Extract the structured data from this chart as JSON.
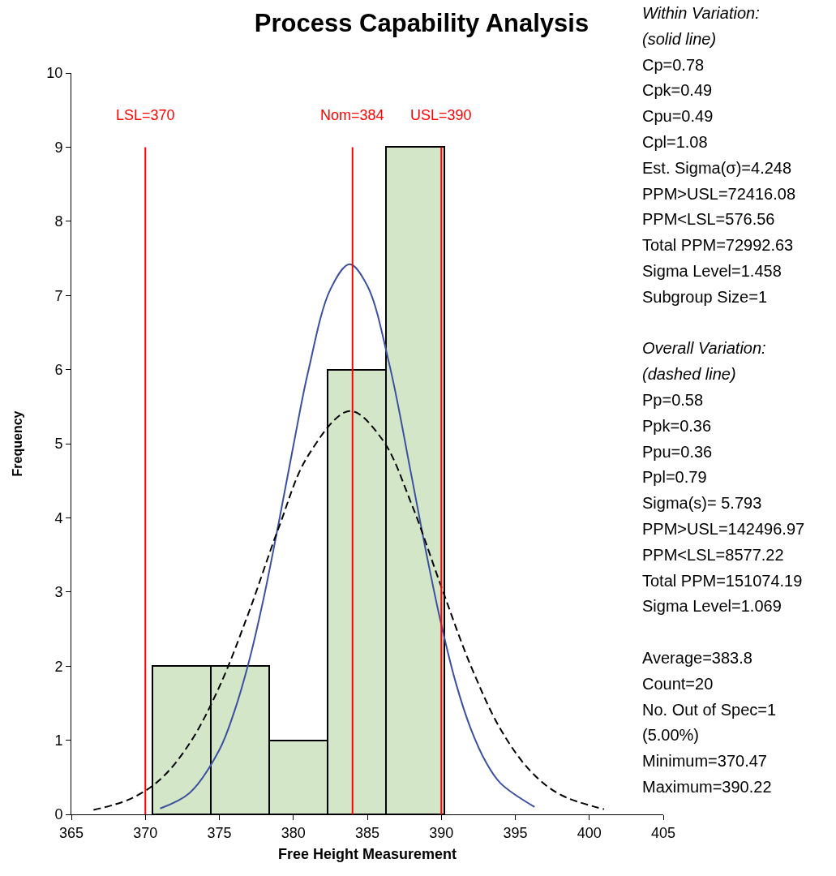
{
  "chart_data": {
    "type": "histogram",
    "title": "Process Capability Analysis",
    "xlabel": "Free Height Measurement",
    "ylabel": "Frequency",
    "bins": [
      370.47,
      374.42,
      378.37,
      382.32,
      386.27,
      390.22
    ],
    "values": [
      2,
      2,
      1,
      6,
      9
    ],
    "color": "#d3e6c8",
    "series": [
      {
        "type": "line",
        "color": "#3c50a0",
        "line_style": "solid",
        "x": [
          371,
          373,
          375,
          376,
          377,
          378,
          379,
          380,
          381,
          382.5,
          383.8,
          385,
          386.5,
          388,
          389,
          390,
          391,
          392,
          393,
          394,
          396.3
        ],
        "values": [
          0.08,
          0.29,
          0.87,
          1.38,
          2.06,
          2.92,
          3.92,
          4.97,
          5.97,
          7.08,
          7.42,
          7.13,
          6.06,
          4.55,
          3.51,
          2.56,
          1.76,
          1.15,
          0.71,
          0.42,
          0.1
        ]
      },
      {
        "type": "line",
        "color": "#000000",
        "line_style": "dashed",
        "x": [
          366.5,
          369,
          371,
          373,
          375,
          377,
          379,
          381,
          383.8,
          386,
          388,
          390,
          392,
          394,
          396,
          398,
          401
        ],
        "values": [
          0.06,
          0.21,
          0.47,
          0.96,
          1.72,
          2.73,
          3.86,
          4.84,
          5.44,
          5.06,
          4.18,
          3.07,
          2.0,
          1.15,
          0.59,
          0.27,
          0.07
        ]
      }
    ],
    "ref_lines": [
      {
        "axis": "x",
        "value": 370,
        "label": "LSL=370",
        "color": "#ff0000"
      },
      {
        "axis": "x",
        "value": 384,
        "label": "Nom=384",
        "color": "#ff0000"
      },
      {
        "axis": "x",
        "value": 390,
        "label": "USL=390",
        "color": "#ff0000"
      }
    ],
    "annotations": [
      "Within Variation:\n(solid line)\nCp=0.78\nCpk=0.49\nCpu=0.49\nCpl=1.08\nEst. Sigma(σ)=4.248\nPPM>USL=72416.08\nPPM<LSL=576.56\nTotal PPM=72992.63\nSigma Level=1.458\nSubgroup Size=1",
      "Overall Variation:\n(dashed line)\nPp=0.58\nPpk=0.36\nPpu=0.36\nPpl=0.79\nSigma(s)= 5.793\nPPM>USL=142496.97\nPPM<LSL=8577.22\nTotal PPM=151074.19\nSigma Level=1.069",
      "Average=383.8\nCount=20\nNo. Out of Spec=1\n(5.00%)\nMinimum=370.47\nMaximum=390.22"
    ],
    "xlim": [
      365,
      405
    ],
    "xticks": [
      365,
      370,
      375,
      380,
      385,
      390,
      395,
      400,
      405
    ],
    "ylim": [
      0,
      10
    ],
    "yticks": [
      0,
      1,
      2,
      3,
      4,
      5,
      6,
      7,
      8,
      9,
      10
    ]
  }
}
